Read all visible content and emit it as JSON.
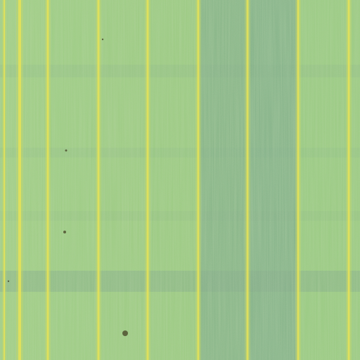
{
  "image": {
    "subject": "aerial-crop-field",
    "colors": {
      "base": "#8fc47a",
      "light_strip": "#a9d685",
      "bluish_strip": "#7fae88",
      "horizontal_band": "#7aa585",
      "tramline": "#e3e15a",
      "tramline_glow": "#c9d962",
      "speck": "#4a4a2a"
    },
    "content": {
      "tramline_count": 9,
      "bluish_column_count": 2,
      "horizontal_band_count": 2
    }
  }
}
